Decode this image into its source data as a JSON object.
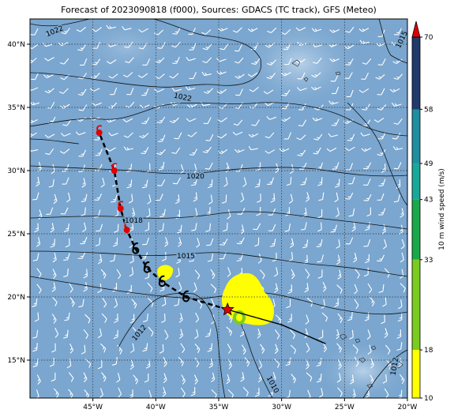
{
  "title": "Forecast of 2023090818 (f000), Sources: GDACS (TC track), GFS (Meteo)",
  "map": {
    "lon_range": [
      -50,
      -20
    ],
    "lat_range": [
      12,
      42
    ],
    "lon_ticks": [
      "45°W",
      "40°W",
      "35°W",
      "30°W",
      "25°W",
      "20°W"
    ],
    "lat_ticks": [
      "40°N",
      "35°N",
      "30°N",
      "25°N",
      "20°N",
      "15°N"
    ],
    "ocean_color": "#7aa6cf"
  },
  "isobar_labels": [
    "1022",
    "1022",
    "1020",
    "1018",
    "1015",
    "1015",
    "1012",
    "1010",
    "1012"
  ],
  "colorbar": {
    "label": "10 m wind speed (m/s)",
    "ticks": [
      "70",
      "58",
      "49",
      "43",
      "33",
      "18",
      "10"
    ],
    "colors": [
      "#1f3a6b",
      "#27508a",
      "#1f8ea0",
      "#18a89a",
      "#1aa84a",
      "#7acc20",
      "#ffff00"
    ],
    "extend_color": "#e00000"
  },
  "track": {
    "current_position": {
      "lon": -34.3,
      "lat": 19.0
    },
    "forecast_points": [
      {
        "lon": -37.6,
        "lat": 20.0,
        "color": "#000000"
      },
      {
        "lon": -39.5,
        "lat": 21.2,
        "color": "#000000"
      },
      {
        "lon": -40.7,
        "lat": 22.3,
        "color": "#000000"
      },
      {
        "lon": -41.6,
        "lat": 23.8,
        "color": "#000000"
      },
      {
        "lon": -42.3,
        "lat": 25.3,
        "color": "#e00000"
      },
      {
        "lon": -42.8,
        "lat": 27.0,
        "color": "#e00000"
      },
      {
        "lon": -43.3,
        "lat": 30.0,
        "color": "#e00000"
      },
      {
        "lon": -44.5,
        "lat": 33.0,
        "color": "#e00000"
      }
    ],
    "past_track": [
      {
        "lon": -34.3,
        "lat": 19.0
      },
      {
        "lon": -30.0,
        "lat": 17.8
      },
      {
        "lon": -26.5,
        "lat": 16.3
      }
    ]
  }
}
